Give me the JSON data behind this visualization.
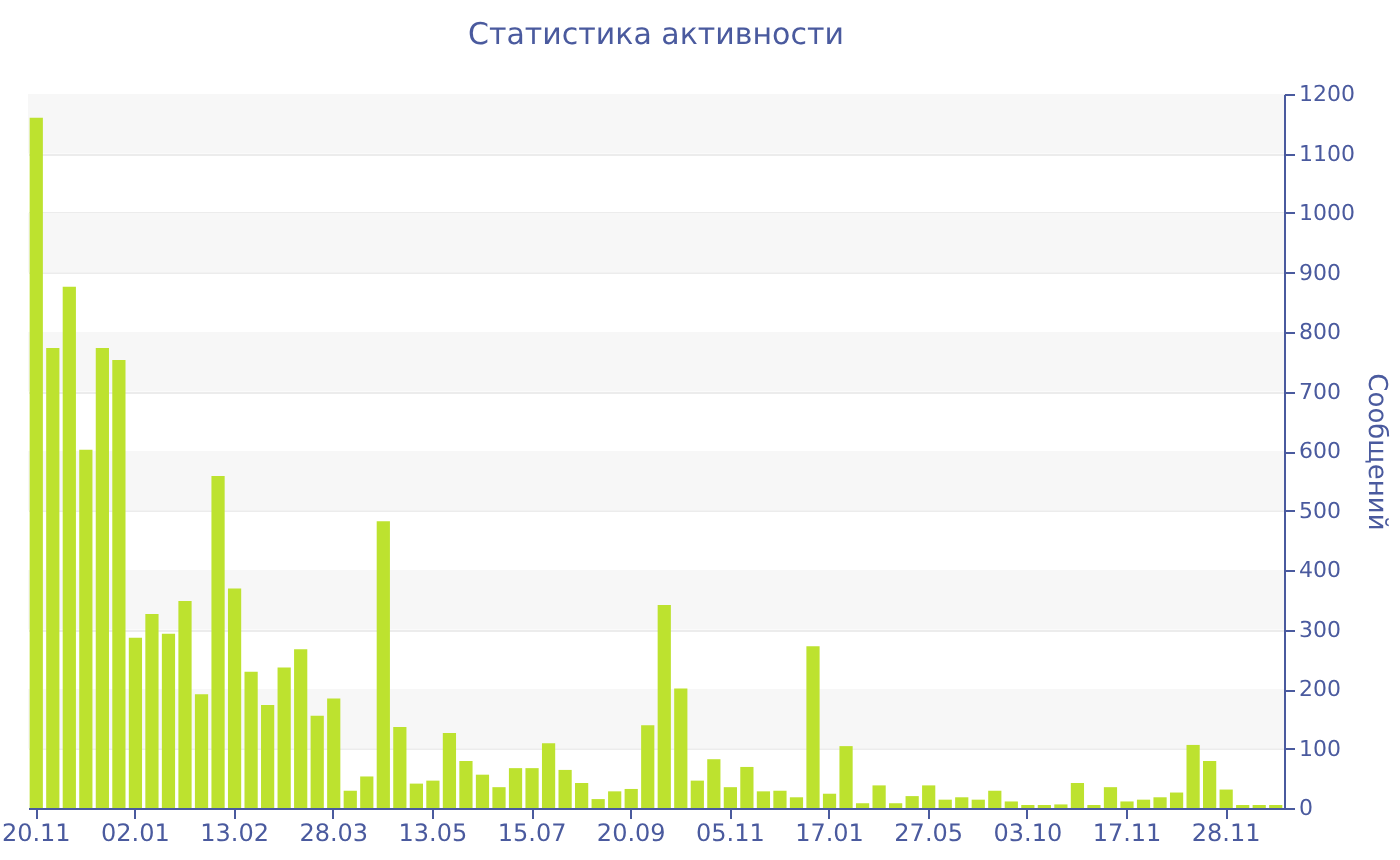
{
  "chart_data": {
    "type": "bar",
    "title": "Статистика активности",
    "ylabel": "Сообщений",
    "categories": [
      "20.11",
      null,
      null,
      null,
      null,
      null,
      "02.01",
      null,
      null,
      null,
      null,
      null,
      "13.02",
      null,
      null,
      null,
      null,
      null,
      "28.03",
      null,
      null,
      null,
      null,
      null,
      "13.05",
      null,
      null,
      null,
      null,
      null,
      "15.07",
      null,
      null,
      null,
      null,
      null,
      "20.09",
      null,
      null,
      null,
      null,
      null,
      "05.11",
      null,
      null,
      null,
      null,
      null,
      "17.01",
      null,
      null,
      null,
      null,
      null,
      "27.05",
      null,
      null,
      null,
      null,
      null,
      "03.10",
      null,
      null,
      null,
      null,
      null,
      "17.11",
      null,
      null,
      null,
      null,
      null,
      "28.11",
      null,
      null,
      null
    ],
    "values": [
      1160,
      773,
      876,
      602,
      773,
      753,
      286,
      326,
      293,
      348,
      191,
      558,
      369,
      229,
      173,
      236,
      267,
      155,
      184,
      29,
      53,
      482,
      136,
      41,
      46,
      126,
      79,
      56,
      35,
      67,
      67,
      109,
      64,
      42,
      15,
      28,
      32,
      139,
      341,
      201,
      46,
      82,
      35,
      69,
      28,
      29,
      18,
      272,
      24,
      104,
      8,
      38,
      8,
      20,
      38,
      14,
      18,
      14,
      29,
      11,
      5,
      5,
      6,
      42,
      5,
      35,
      11,
      14,
      18,
      26,
      106,
      79,
      31,
      5,
      5,
      5
    ],
    "color": "#bde22f",
    "ylim": [
      0,
      1200
    ],
    "yticks": [
      0,
      100,
      200,
      300,
      400,
      500,
      600,
      700,
      800,
      900,
      1000,
      1100,
      1200
    ],
    "grid": "y"
  }
}
